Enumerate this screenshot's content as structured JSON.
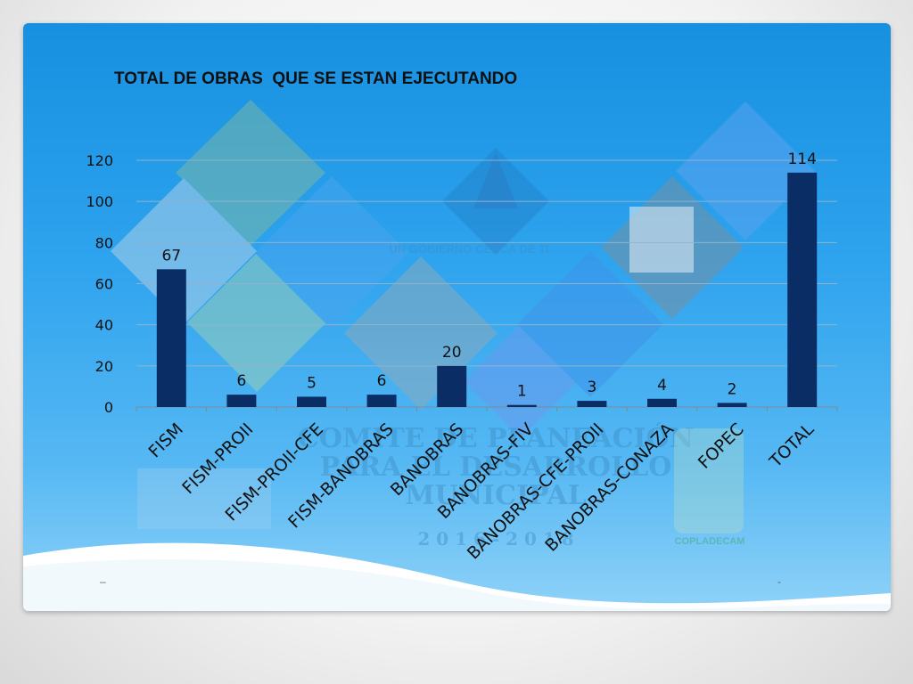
{
  "chart_data": {
    "type": "bar",
    "title": "TOTAL DE OBRAS  QUE SE ESTAN EJECUTANDO",
    "categories": [
      "FISM",
      "FISM-PROII",
      "FISM-PROII-CFE",
      "FISM-BANOBRAS",
      "BANOBRAS",
      "BANOBRAS-FIV",
      "BANOBRAS-CFE-PROII",
      "BANOBRAS-CONAZA",
      "FOPEC",
      "TOTAL"
    ],
    "values": [
      67,
      6,
      5,
      6,
      20,
      1,
      3,
      4,
      2,
      114
    ],
    "ylim": [
      0,
      120
    ],
    "yticks": [
      0,
      20,
      40,
      60,
      80,
      100,
      120
    ],
    "grid": true,
    "legend": "none",
    "bar_color": "#0b2d66",
    "xlabel": "",
    "ylabel": ""
  },
  "watermark": {
    "line1": "COMITE DE PLANEACIÓN",
    "line2": "PARA EL DESARROLLO",
    "line3": "MUNICIPAL",
    "years": "2 0 1 6   -   2 0 1 8",
    "badge": "COPLADECAM",
    "slogan": "UN GOBIERNO CERCA DE TI"
  },
  "footer": {
    "left_mark": "–",
    "right_mark": "-"
  }
}
